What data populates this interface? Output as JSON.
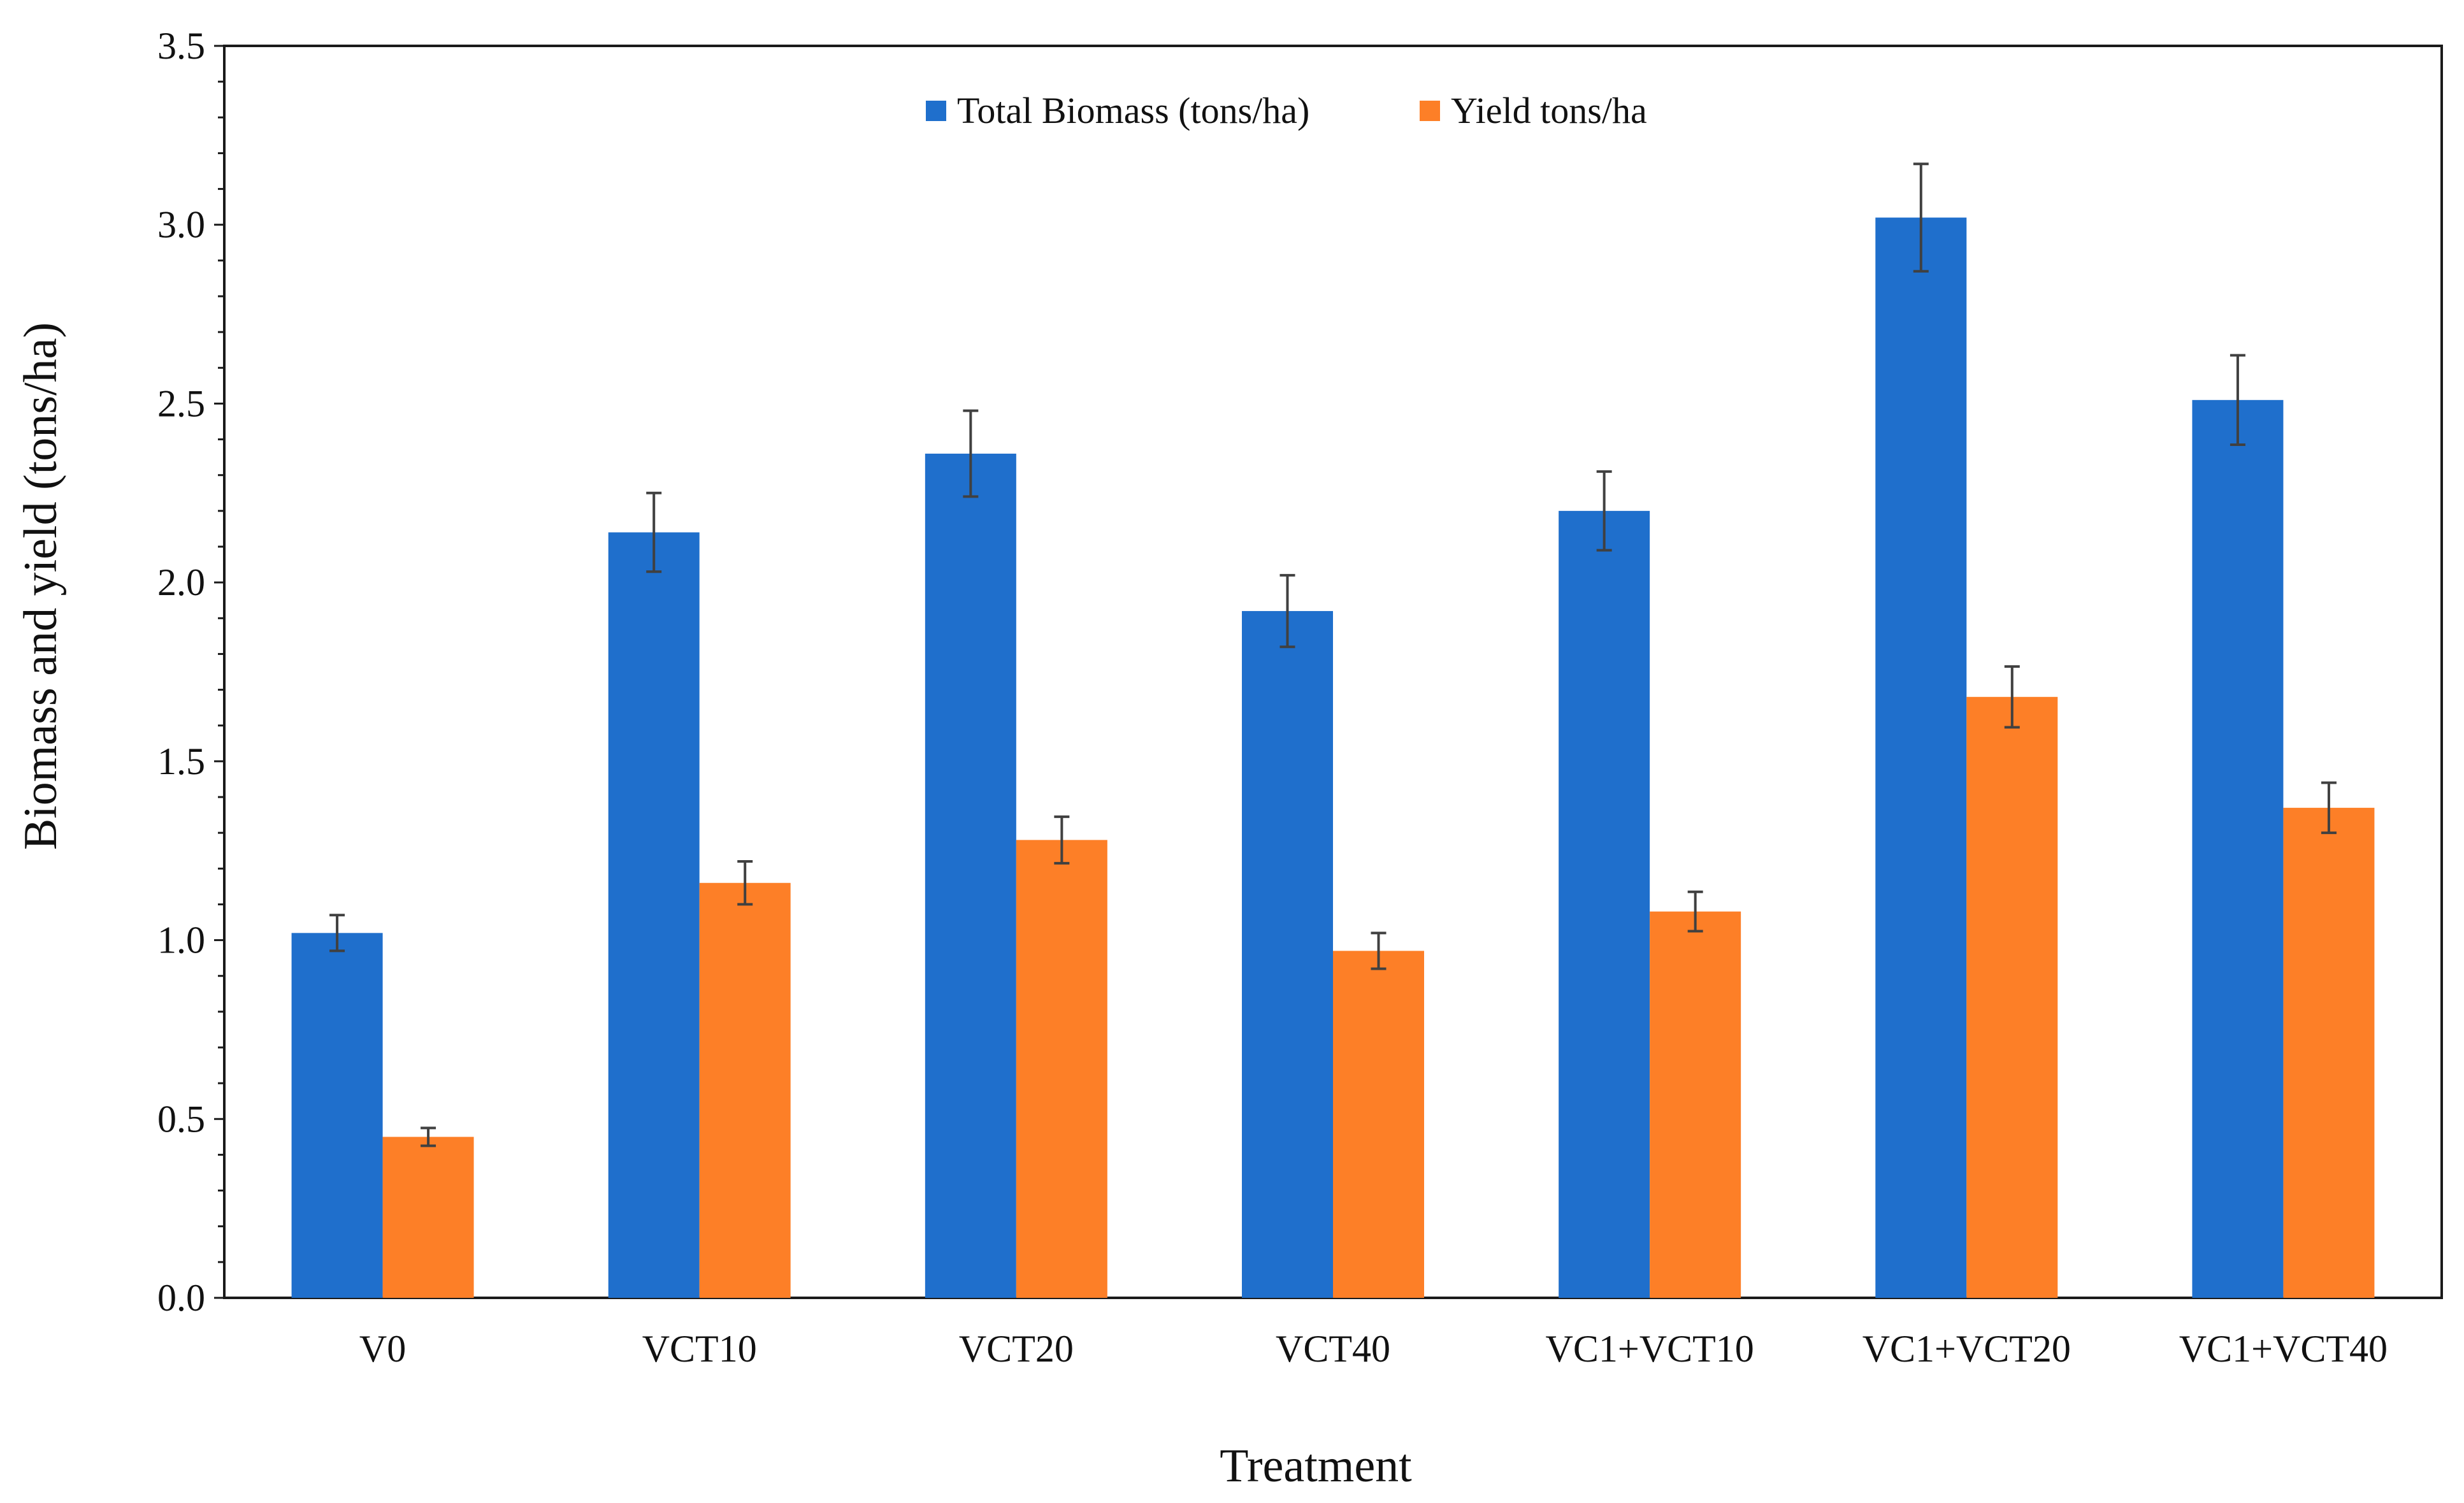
{
  "chart_data": {
    "type": "bar",
    "title": "",
    "xlabel": "Treatment",
    "ylabel": "Biomass and yield (tons/ha)",
    "ylim": [
      0,
      3.5
    ],
    "yticks": [
      "0.0",
      "0.5",
      "1.0",
      "1.5",
      "2.0",
      "2.5",
      "3.0",
      "3.5"
    ],
    "ytick_values": [
      0,
      0.5,
      1.0,
      1.5,
      2.0,
      2.5,
      3.0,
      3.5
    ],
    "categories": [
      "V0",
      "VCT10",
      "VCT20",
      "VCT40",
      "VC1+VCT10",
      "VC1+VCT20",
      "VC1+VCT40"
    ],
    "series": [
      {
        "name": "Total Biomass (tons/ha)",
        "color": "#1f6fcc",
        "values": [
          1.02,
          2.14,
          2.36,
          1.92,
          2.2,
          3.02,
          2.51
        ],
        "errors": [
          0.05,
          0.11,
          0.12,
          0.1,
          0.11,
          0.15,
          0.125
        ]
      },
      {
        "name": "Yield tons/ha",
        "color": "#fd7f27",
        "values": [
          0.45,
          1.16,
          1.28,
          0.97,
          1.08,
          1.68,
          1.37
        ],
        "errors": [
          0.025,
          0.06,
          0.065,
          0.05,
          0.055,
          0.085,
          0.07
        ]
      }
    ],
    "legend_position": "top-center",
    "grid": false
  }
}
